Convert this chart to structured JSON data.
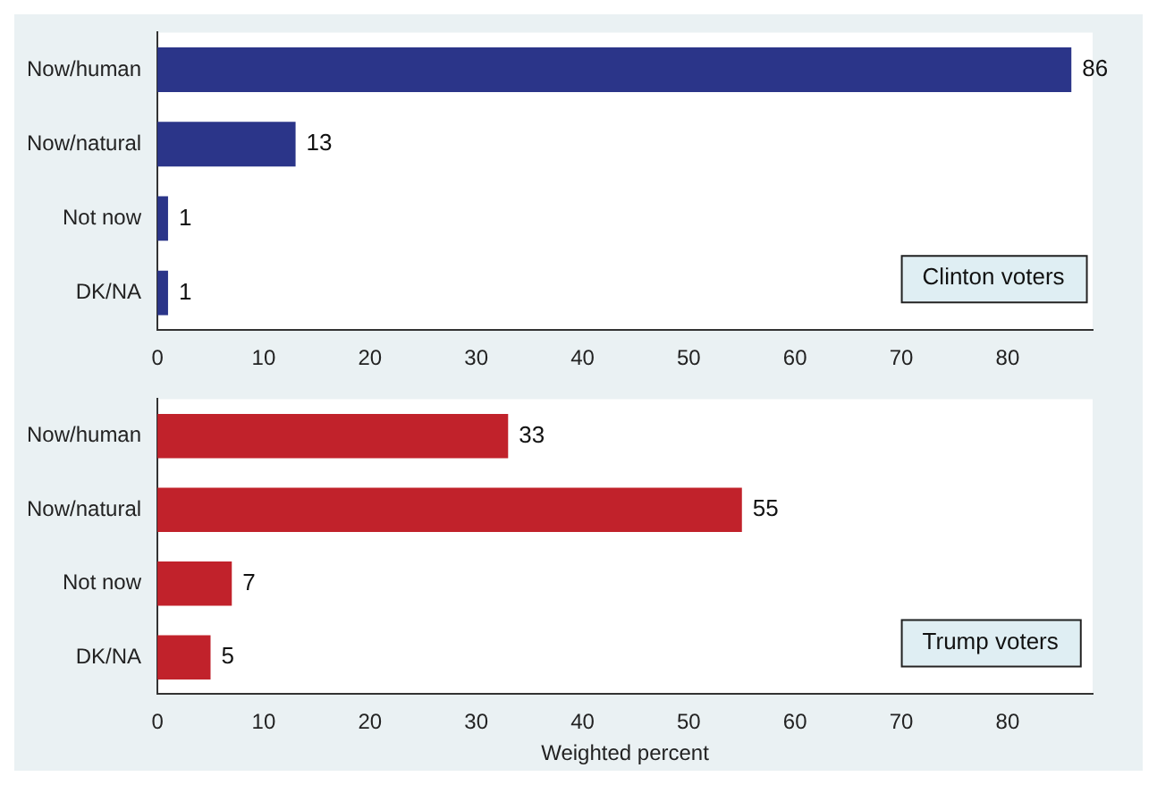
{
  "chart_data": [
    {
      "type": "bar",
      "orientation": "horizontal",
      "categories": [
        "Now/human",
        "Now/natural",
        "Not now",
        "DK/NA"
      ],
      "series": [
        {
          "color": "#2b3589",
          "values": [
            86,
            13,
            1,
            1
          ]
        }
      ],
      "xlim": [
        0,
        88
      ],
      "xticks": [
        0,
        10,
        20,
        30,
        40,
        50,
        60,
        70,
        80
      ],
      "data_labels": true,
      "grid": false,
      "legend": false,
      "annotations": [
        "Clinton voters"
      ]
    },
    {
      "type": "bar",
      "orientation": "horizontal",
      "categories": [
        "Now/human",
        "Now/natural",
        "Not now",
        "DK/NA"
      ],
      "series": [
        {
          "color": "#c1222b",
          "values": [
            33,
            55,
            7,
            5
          ]
        }
      ],
      "xlim": [
        0,
        88
      ],
      "xticks": [
        0,
        10,
        20,
        30,
        40,
        50,
        60,
        70,
        80
      ],
      "data_labels": true,
      "grid": false,
      "legend": false,
      "xlabel": "Weighted percent",
      "annotations": [
        "Trump voters"
      ]
    }
  ]
}
